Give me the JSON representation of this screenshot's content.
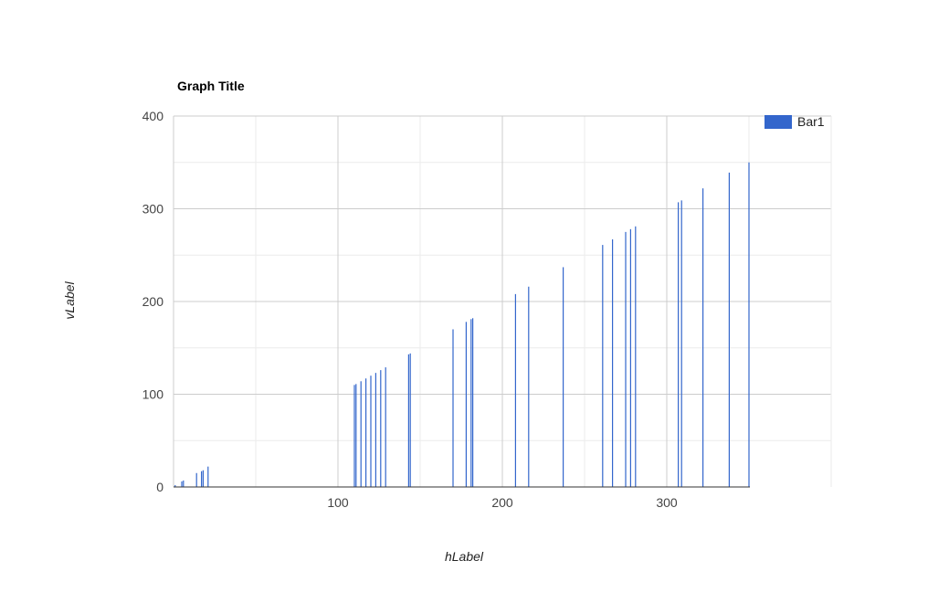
{
  "chart_data": {
    "type": "bar",
    "title": "Graph Title",
    "xlabel": "hLabel",
    "ylabel": "vLabel",
    "xlim": [
      0,
      400
    ],
    "ylim": [
      0,
      400
    ],
    "x_ticks": [
      100,
      200,
      300
    ],
    "y_ticks": [
      0,
      100,
      200,
      300,
      400
    ],
    "grid": true,
    "legend_position": "top-right",
    "series": [
      {
        "name": "Bar1",
        "color": "#3366cc",
        "x": [
          1,
          5,
          6,
          14,
          17,
          18,
          21,
          110,
          111,
          114,
          117,
          120,
          123,
          126,
          129,
          143,
          144,
          170,
          178,
          181,
          182,
          208,
          216,
          237,
          261,
          267,
          275,
          278,
          281,
          307,
          309,
          322,
          338,
          350
        ],
        "values": [
          2,
          6,
          7,
          15,
          17,
          18,
          22,
          110,
          111,
          114,
          117,
          120,
          123,
          126,
          129,
          143,
          144,
          170,
          178,
          181,
          182,
          208,
          216,
          237,
          261,
          267,
          275,
          278,
          281,
          307,
          309,
          322,
          339,
          350
        ]
      }
    ]
  }
}
